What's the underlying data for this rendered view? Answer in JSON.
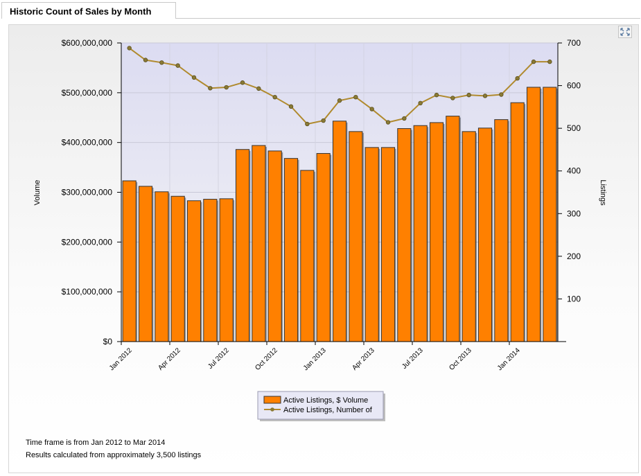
{
  "panel": {
    "tab_title": "Historic Count of Sales by Month",
    "expand_icon": "expand-arrows-icon",
    "footnote_1": "Time frame is from Jan 2012 to Mar 2014",
    "footnote_2": "Results calculated from approximately 3,500 listings"
  },
  "colors": {
    "bar": "#ff8000",
    "bar_border": "#333333",
    "line": "#b08a2e",
    "marker": "#8a7a35",
    "plot_bg_top": "#dcdcf2",
    "plot_bg_bottom": "#f4f4f4"
  },
  "chart_data": {
    "type": "bar+line",
    "title": "",
    "ylabel": "Volume",
    "y2label": "Listings",
    "ylim": [
      0,
      600000000
    ],
    "y2lim": [
      0,
      700
    ],
    "y_ticks": [
      "$0",
      "$100,000,000",
      "$200,000,000",
      "$300,000,000",
      "$400,000,000",
      "$500,000,000",
      "$600,000,000"
    ],
    "y2_ticks": [
      "100",
      "200",
      "300",
      "400",
      "500",
      "600",
      "700"
    ],
    "x_tick_labels": [
      "Jan 2012",
      "Apr 2012",
      "Jul 2012",
      "Oct 2012",
      "Jan 2013",
      "Apr 2013",
      "Jul 2013",
      "Oct 2013",
      "Jan 2014"
    ],
    "categories": [
      "Jan 2012",
      "Feb 2012",
      "Mar 2012",
      "Apr 2012",
      "May 2012",
      "Jun 2012",
      "Jul 2012",
      "Aug 2012",
      "Sep 2012",
      "Oct 2012",
      "Nov 2012",
      "Dec 2012",
      "Jan 2013",
      "Feb 2013",
      "Mar 2013",
      "Apr 2013",
      "May 2013",
      "Jun 2013",
      "Jul 2013",
      "Aug 2013",
      "Sep 2013",
      "Oct 2013",
      "Nov 2013",
      "Dec 2013",
      "Jan 2014",
      "Feb 2014",
      "Mar 2014"
    ],
    "series": [
      {
        "name": "Active Listings, $ Volume",
        "kind": "bar",
        "axis": "left",
        "values": [
          323000000,
          312000000,
          301000000,
          292000000,
          283000000,
          286000000,
          287000000,
          386000000,
          394000000,
          383000000,
          368000000,
          344000000,
          378000000,
          443000000,
          422000000,
          390000000,
          390000000,
          428000000,
          434000000,
          440000000,
          453000000,
          422000000,
          429000000,
          446000000,
          480000000,
          511000000,
          511000000
        ]
      },
      {
        "name": "Active Listings, Number of",
        "kind": "line",
        "axis": "right",
        "values": [
          688,
          660,
          654,
          647,
          619,
          594,
          596,
          607,
          593,
          573,
          551,
          510,
          518,
          565,
          573,
          545,
          514,
          523,
          559,
          578,
          571,
          578,
          576,
          579,
          617,
          656,
          656
        ]
      }
    ],
    "legend_position": "bottom-center",
    "grid": true
  }
}
